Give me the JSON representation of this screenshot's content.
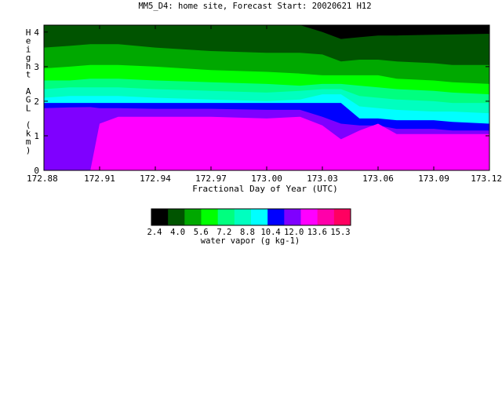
{
  "chart_data": {
    "type": "heatmap",
    "title": "MM5_D4: home site,  Forecast Start: 20020621 H12",
    "xlabel": "Fractional Day of Year (UTC)",
    "ylabel": "Height AGL (km)",
    "xlim": [
      172.88,
      173.12
    ],
    "ylim": [
      0,
      4.2
    ],
    "x_ticks": [
      "172.88",
      "172.91",
      "172.94",
      "172.97",
      "173.00",
      "173.03",
      "173.06",
      "173.09",
      "173.12"
    ],
    "y_ticks": [
      "0",
      "1",
      "2",
      "3",
      "4"
    ],
    "grid": false,
    "colorbar": {
      "label": "water vapor (g kg-1)",
      "tick_labels": [
        "2.4",
        "4.0",
        "5.6",
        "7.2",
        "8.8",
        "10.4",
        "12.0",
        "13.6",
        "15.3"
      ],
      "colors": [
        "#000000",
        "#005400",
        "#00a800",
        "#00ff00",
        "#00ff7f",
        "#00ffbf",
        "#00ffff",
        "#0000ff",
        "#7f00ff",
        "#ff00ff",
        "#ff00aa",
        "#ff0060"
      ]
    },
    "x": [
      172.88,
      172.894,
      172.905,
      172.91,
      172.92,
      172.94,
      172.97,
      173.0,
      173.018,
      173.03,
      173.04,
      173.05,
      173.06,
      173.07,
      173.09,
      173.1,
      173.12
    ],
    "contours": [
      {
        "level": "2.4",
        "color": "#000000",
        "top_km": [
          4.2,
          4.2,
          4.2,
          4.2,
          4.2,
          4.2,
          4.2,
          4.2,
          4.2,
          4.2,
          4.2,
          4.2,
          4.2,
          4.2,
          4.2,
          4.2,
          4.2
        ]
      },
      {
        "level": "4.0",
        "color": "#005400",
        "top_km": [
          4.2,
          4.2,
          4.2,
          4.2,
          4.2,
          4.2,
          4.2,
          4.2,
          4.2,
          4.0,
          3.8,
          3.85,
          3.9,
          3.9,
          3.92,
          3.93,
          3.95
        ]
      },
      {
        "level": "5.6",
        "color": "#00a800",
        "top_km": [
          3.55,
          3.6,
          3.65,
          3.65,
          3.65,
          3.55,
          3.45,
          3.4,
          3.4,
          3.35,
          3.15,
          3.2,
          3.2,
          3.15,
          3.1,
          3.05,
          3.05
        ]
      },
      {
        "level": "7.2",
        "color": "#00ff00",
        "top_km": [
          2.95,
          3.0,
          3.05,
          3.05,
          3.05,
          3.0,
          2.9,
          2.85,
          2.8,
          2.75,
          2.75,
          2.75,
          2.75,
          2.65,
          2.6,
          2.55,
          2.5
        ]
      },
      {
        "level": "8.8",
        "color": "#00ff7f",
        "top_km": [
          2.6,
          2.6,
          2.65,
          2.65,
          2.65,
          2.6,
          2.55,
          2.5,
          2.45,
          2.5,
          2.5,
          2.45,
          2.4,
          2.35,
          2.3,
          2.25,
          2.2
        ]
      },
      {
        "level": "10.4",
        "color": "#00ffbf",
        "top_km": [
          2.35,
          2.4,
          2.4,
          2.4,
          2.4,
          2.35,
          2.3,
          2.25,
          2.3,
          2.35,
          2.35,
          2.15,
          2.1,
          2.05,
          2.0,
          1.95,
          1.95
        ]
      },
      {
        "level": "12.0",
        "color": "#00ffff",
        "top_km": [
          2.1,
          2.15,
          2.15,
          2.15,
          2.15,
          2.1,
          2.05,
          2.0,
          2.05,
          2.2,
          2.2,
          1.85,
          1.8,
          1.75,
          1.7,
          1.7,
          1.65
        ]
      },
      {
        "level": "13.6",
        "color": "#0000ff",
        "top_km": [
          1.95,
          1.95,
          1.95,
          1.95,
          1.95,
          1.95,
          1.95,
          1.95,
          1.95,
          1.95,
          1.95,
          1.5,
          1.5,
          1.45,
          1.45,
          1.4,
          1.35
        ]
      },
      {
        "level": "15.3",
        "color": "#7f00ff",
        "top_km": [
          1.8,
          1.82,
          1.83,
          1.8,
          1.8,
          1.78,
          1.78,
          1.75,
          1.75,
          1.55,
          1.35,
          1.3,
          1.3,
          1.2,
          1.2,
          1.15,
          1.15
        ]
      },
      {
        "level": "14.5",
        "color": "#ff00ff",
        "top_km": [
          0,
          0,
          0,
          1.35,
          1.55,
          1.55,
          1.55,
          1.5,
          1.55,
          1.3,
          0.9,
          1.15,
          1.35,
          1.05,
          1.05,
          1.05,
          1.05
        ]
      }
    ]
  }
}
